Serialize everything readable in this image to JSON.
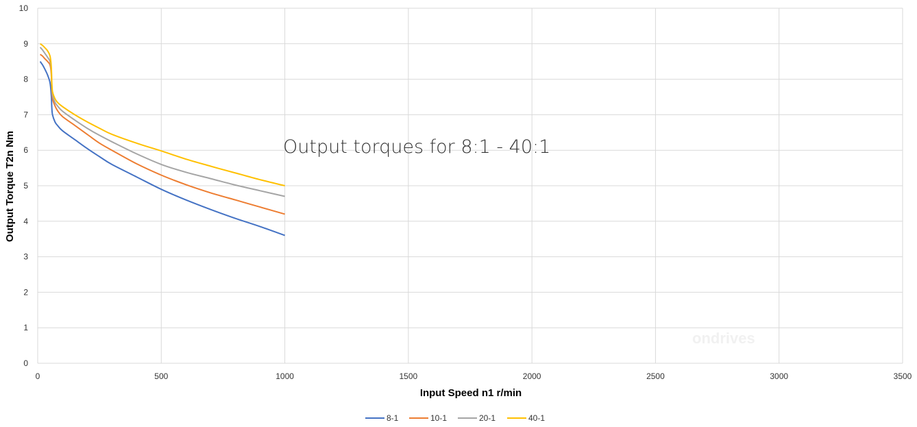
{
  "chart_data": {
    "type": "line",
    "title": "Output torques for 8:1 - 40:1",
    "xlabel": "Input Speed n1 r/min",
    "ylabel": "Output Torque T2n Nm",
    "xlim": [
      0,
      3500
    ],
    "ylim": [
      0,
      10
    ],
    "x_ticks": [
      "0",
      "500",
      "1000",
      "1500",
      "2000",
      "2500",
      "3000",
      "3500"
    ],
    "y_ticks": [
      "0",
      "1",
      "2",
      "3",
      "4",
      "5",
      "6",
      "7",
      "8",
      "9",
      "10"
    ],
    "grid": true,
    "legend_position": "bottom",
    "watermark": "ondrives",
    "series": [
      {
        "name": "8-1",
        "color": "#4472C4",
        "x": [
          10,
          20,
          30,
          40,
          50,
          55,
          57,
          60,
          70,
          80,
          100,
          150,
          200,
          250,
          300,
          400,
          500,
          600,
          700,
          800,
          900,
          1000
        ],
        "y": [
          8.5,
          8.4,
          8.27,
          8.12,
          7.9,
          7.55,
          7.2,
          7.0,
          6.8,
          6.7,
          6.55,
          6.3,
          6.05,
          5.82,
          5.6,
          5.25,
          4.9,
          4.6,
          4.33,
          4.08,
          3.85,
          3.6
        ]
      },
      {
        "name": "10-1",
        "color": "#ED7D31",
        "x": [
          10,
          20,
          30,
          40,
          50,
          55,
          57,
          60,
          70,
          80,
          100,
          150,
          200,
          250,
          300,
          400,
          500,
          600,
          700,
          800,
          900,
          1000
        ],
        "y": [
          8.7,
          8.65,
          8.57,
          8.5,
          8.4,
          8.15,
          7.7,
          7.45,
          7.25,
          7.12,
          6.95,
          6.7,
          6.45,
          6.2,
          6.0,
          5.62,
          5.3,
          5.03,
          4.8,
          4.6,
          4.4,
          4.2
        ]
      },
      {
        "name": "20-1",
        "color": "#A5A5A5",
        "x": [
          10,
          20,
          30,
          40,
          50,
          55,
          57,
          60,
          70,
          80,
          100,
          150,
          200,
          250,
          300,
          400,
          500,
          600,
          700,
          800,
          900,
          1000
        ],
        "y": [
          8.9,
          8.82,
          8.72,
          8.62,
          8.5,
          8.25,
          7.8,
          7.55,
          7.35,
          7.25,
          7.1,
          6.85,
          6.62,
          6.42,
          6.24,
          5.9,
          5.6,
          5.38,
          5.2,
          5.02,
          4.86,
          4.7
        ]
      },
      {
        "name": "40-1",
        "color": "#FFC000",
        "x": [
          10,
          20,
          30,
          40,
          50,
          55,
          57,
          60,
          70,
          80,
          100,
          150,
          200,
          250,
          300,
          400,
          500,
          600,
          700,
          800,
          900,
          1000
        ],
        "y": [
          9.0,
          8.95,
          8.88,
          8.8,
          8.65,
          8.35,
          7.9,
          7.65,
          7.45,
          7.35,
          7.23,
          7.0,
          6.8,
          6.62,
          6.45,
          6.2,
          5.98,
          5.75,
          5.55,
          5.36,
          5.17,
          5.0
        ]
      }
    ]
  }
}
